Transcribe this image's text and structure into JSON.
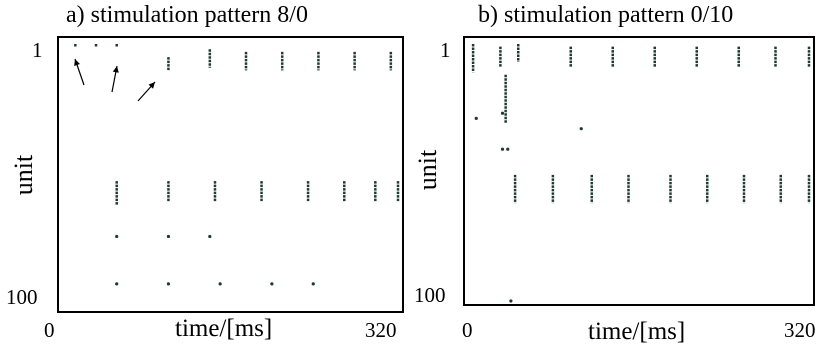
{
  "chart_data": [
    {
      "type": "scatter",
      "title": "a) stimulation pattern 8/0",
      "xlabel": "time/[ms]",
      "ylabel": "unit",
      "xlim": [
        0,
        320
      ],
      "ylim": [
        1,
        100
      ],
      "x_ticks": [
        "0",
        "320"
      ],
      "y_ticks": [
        "1",
        "100"
      ],
      "y_inverted": true,
      "grid": false,
      "marker_color": "#1f3a33",
      "annotations": [
        "arrow",
        "arrow",
        "arrow"
      ],
      "series": [
        {
          "bursts": [
            {
              "x": 10,
              "y_from": 1,
              "y_to": 2
            },
            {
              "x": 30,
              "y_from": 1,
              "y_to": 2
            },
            {
              "x": 50,
              "y_from": 1,
              "y_to": 2
            },
            {
              "x": 100,
              "y_from": 6,
              "y_to": 11
            },
            {
              "x": 140,
              "y_from": 3,
              "y_to": 10
            },
            {
              "x": 175,
              "y_from": 4,
              "y_to": 11
            },
            {
              "x": 210,
              "y_from": 4,
              "y_to": 11
            },
            {
              "x": 245,
              "y_from": 4,
              "y_to": 11
            },
            {
              "x": 280,
              "y_from": 4,
              "y_to": 11
            },
            {
              "x": 315,
              "y_from": 4,
              "y_to": 11
            },
            {
              "x": 50,
              "y_from": 53,
              "y_to": 62
            },
            {
              "x": 100,
              "y_from": 53,
              "y_to": 61
            },
            {
              "x": 145,
              "y_from": 53,
              "y_to": 61
            },
            {
              "x": 190,
              "y_from": 53,
              "y_to": 61
            },
            {
              "x": 235,
              "y_from": 53,
              "y_to": 61
            },
            {
              "x": 270,
              "y_from": 53,
              "y_to": 61
            },
            {
              "x": 300,
              "y_from": 53,
              "y_to": 61
            },
            {
              "x": 330,
              "y_from": 53,
              "y_to": 61
            }
          ],
          "points": [
            {
              "x": 50,
              "y": 74
            },
            {
              "x": 100,
              "y": 74
            },
            {
              "x": 140,
              "y": 74
            },
            {
              "x": 50,
              "y": 92
            },
            {
              "x": 100,
              "y": 92
            },
            {
              "x": 150,
              "y": 92
            },
            {
              "x": 200,
              "y": 92
            },
            {
              "x": 240,
              "y": 92
            }
          ]
        }
      ]
    },
    {
      "type": "scatter",
      "title": "b) stimulation pattern 0/10",
      "xlabel": "time/[ms]",
      "ylabel": "unit",
      "xlim": [
        0,
        320
      ],
      "ylim": [
        1,
        100
      ],
      "x_ticks": [
        "0",
        "320"
      ],
      "y_ticks": [
        "1",
        "100"
      ],
      "y_inverted": true,
      "grid": false,
      "marker_color": "#1f3a33",
      "series": [
        {
          "bursts": [
            {
              "x": 2,
              "y_from": 1,
              "y_to": 12
            },
            {
              "x": 28,
              "y_from": 2,
              "y_to": 10
            },
            {
              "x": 45,
              "y_from": 1,
              "y_to": 8
            },
            {
              "x": 95,
              "y_from": 2,
              "y_to": 10
            },
            {
              "x": 135,
              "y_from": 2,
              "y_to": 10
            },
            {
              "x": 175,
              "y_from": 2,
              "y_to": 10
            },
            {
              "x": 215,
              "y_from": 2,
              "y_to": 10
            },
            {
              "x": 255,
              "y_from": 2,
              "y_to": 10
            },
            {
              "x": 290,
              "y_from": 2,
              "y_to": 10
            },
            {
              "x": 330,
              "y_from": 2,
              "y_to": 10
            },
            {
              "x": 33,
              "y_from": 13,
              "y_to": 32
            },
            {
              "x": 42,
              "y_from": 52,
              "y_to": 63
            },
            {
              "x": 78,
              "y_from": 52,
              "y_to": 63
            },
            {
              "x": 115,
              "y_from": 52,
              "y_to": 63
            },
            {
              "x": 150,
              "y_from": 52,
              "y_to": 63
            },
            {
              "x": 190,
              "y_from": 52,
              "y_to": 63
            },
            {
              "x": 225,
              "y_from": 52,
              "y_to": 63
            },
            {
              "x": 260,
              "y_from": 52,
              "y_to": 63
            },
            {
              "x": 295,
              "y_from": 52,
              "y_to": 63
            },
            {
              "x": 330,
              "y_from": 52,
              "y_to": 63
            }
          ],
          "points": [
            {
              "x": 5,
              "y": 30
            },
            {
              "x": 30,
              "y": 42
            },
            {
              "x": 35,
              "y": 42
            },
            {
              "x": 30,
              "y": 28
            },
            {
              "x": 105,
              "y": 34
            },
            {
              "x": 38,
              "y": 103
            }
          ]
        }
      ]
    }
  ]
}
